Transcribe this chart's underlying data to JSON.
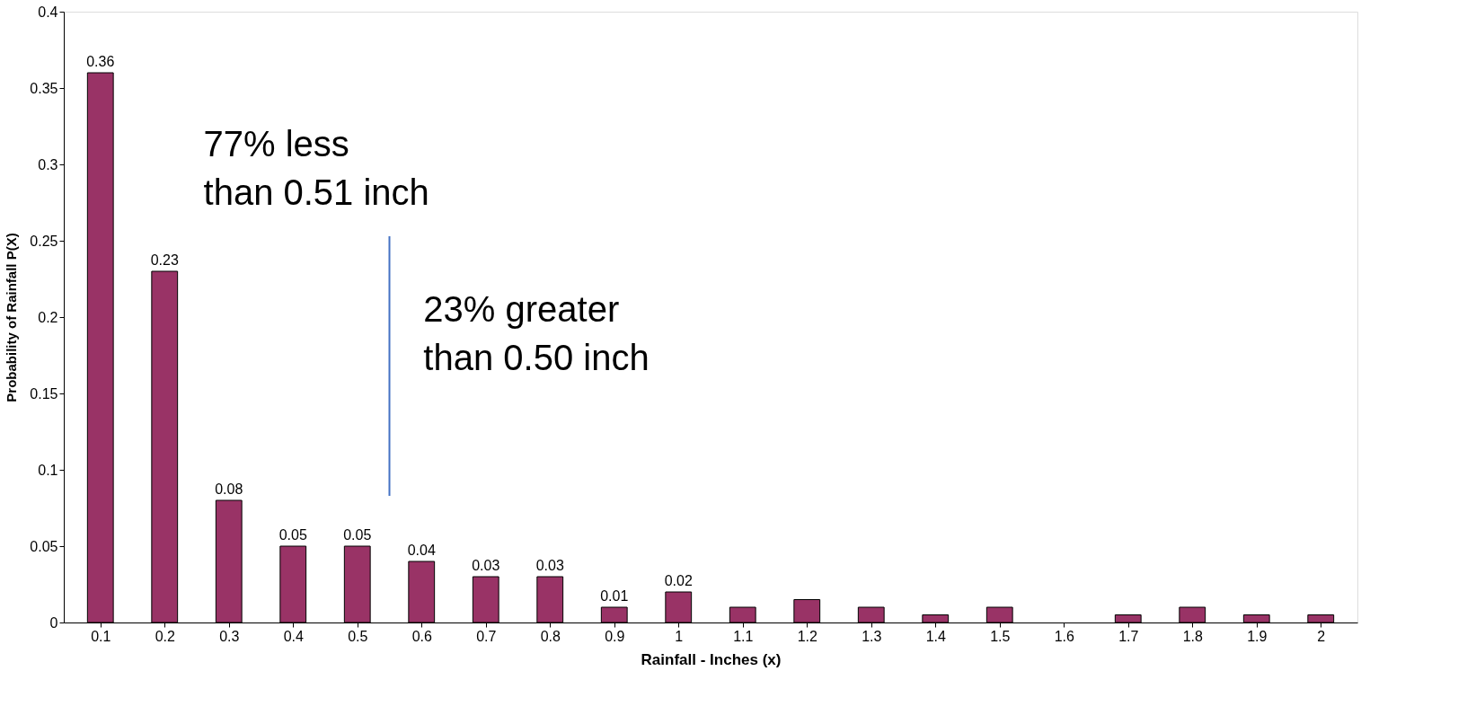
{
  "chart_data": {
    "type": "bar",
    "xlabel": "Rainfall - Inches (x)",
    "ylabel": "Probability of Rainfall P(X)",
    "x": [
      0.1,
      0.2,
      0.3,
      0.4,
      0.5,
      0.6,
      0.7,
      0.8,
      0.9,
      1,
      1.1,
      1.2,
      1.3,
      1.4,
      1.5,
      1.6,
      1.7,
      1.8,
      1.9,
      2
    ],
    "xlim": [
      0.05,
      2.05
    ],
    "xticks": [
      0.1,
      0.2,
      0.3,
      0.4,
      0.5,
      0.6,
      0.7,
      0.8,
      0.9,
      1,
      1.1,
      1.2,
      1.3,
      1.4,
      1.5,
      1.6,
      1.7,
      1.8,
      1.9,
      2
    ],
    "ylim": [
      0,
      0.4
    ],
    "yticks": [
      0,
      0.05,
      0.1,
      0.15,
      0.2,
      0.25,
      0.3,
      0.35,
      0.4
    ],
    "grid": false,
    "series": [
      {
        "color": "#993366",
        "values": [
          0.36,
          0.23,
          0.08,
          0.05,
          0.05,
          0.04,
          0.03,
          0.03,
          0.01,
          0.02,
          0.01,
          0.015,
          0.01,
          0.005,
          0.01,
          null,
          0.005,
          0.01,
          0.005,
          0.005
        ],
        "value_labels": [
          "0.36",
          "0.23",
          "0.08",
          "0.05",
          "0.05",
          "0.04",
          "0.03",
          "0.03",
          "0.01",
          "0.02",
          null,
          null,
          null,
          null,
          null,
          null,
          null,
          null,
          null,
          null
        ]
      },
      {
        "type": "line",
        "color": "#4472c4",
        "x": [
          0.55,
          0.55
        ],
        "values": [
          0.083,
          0.253
        ]
      }
    ],
    "annotations": [
      "77% less\nthan 0.51 inch",
      "23% greater\nthan 0.50 inch"
    ]
  }
}
